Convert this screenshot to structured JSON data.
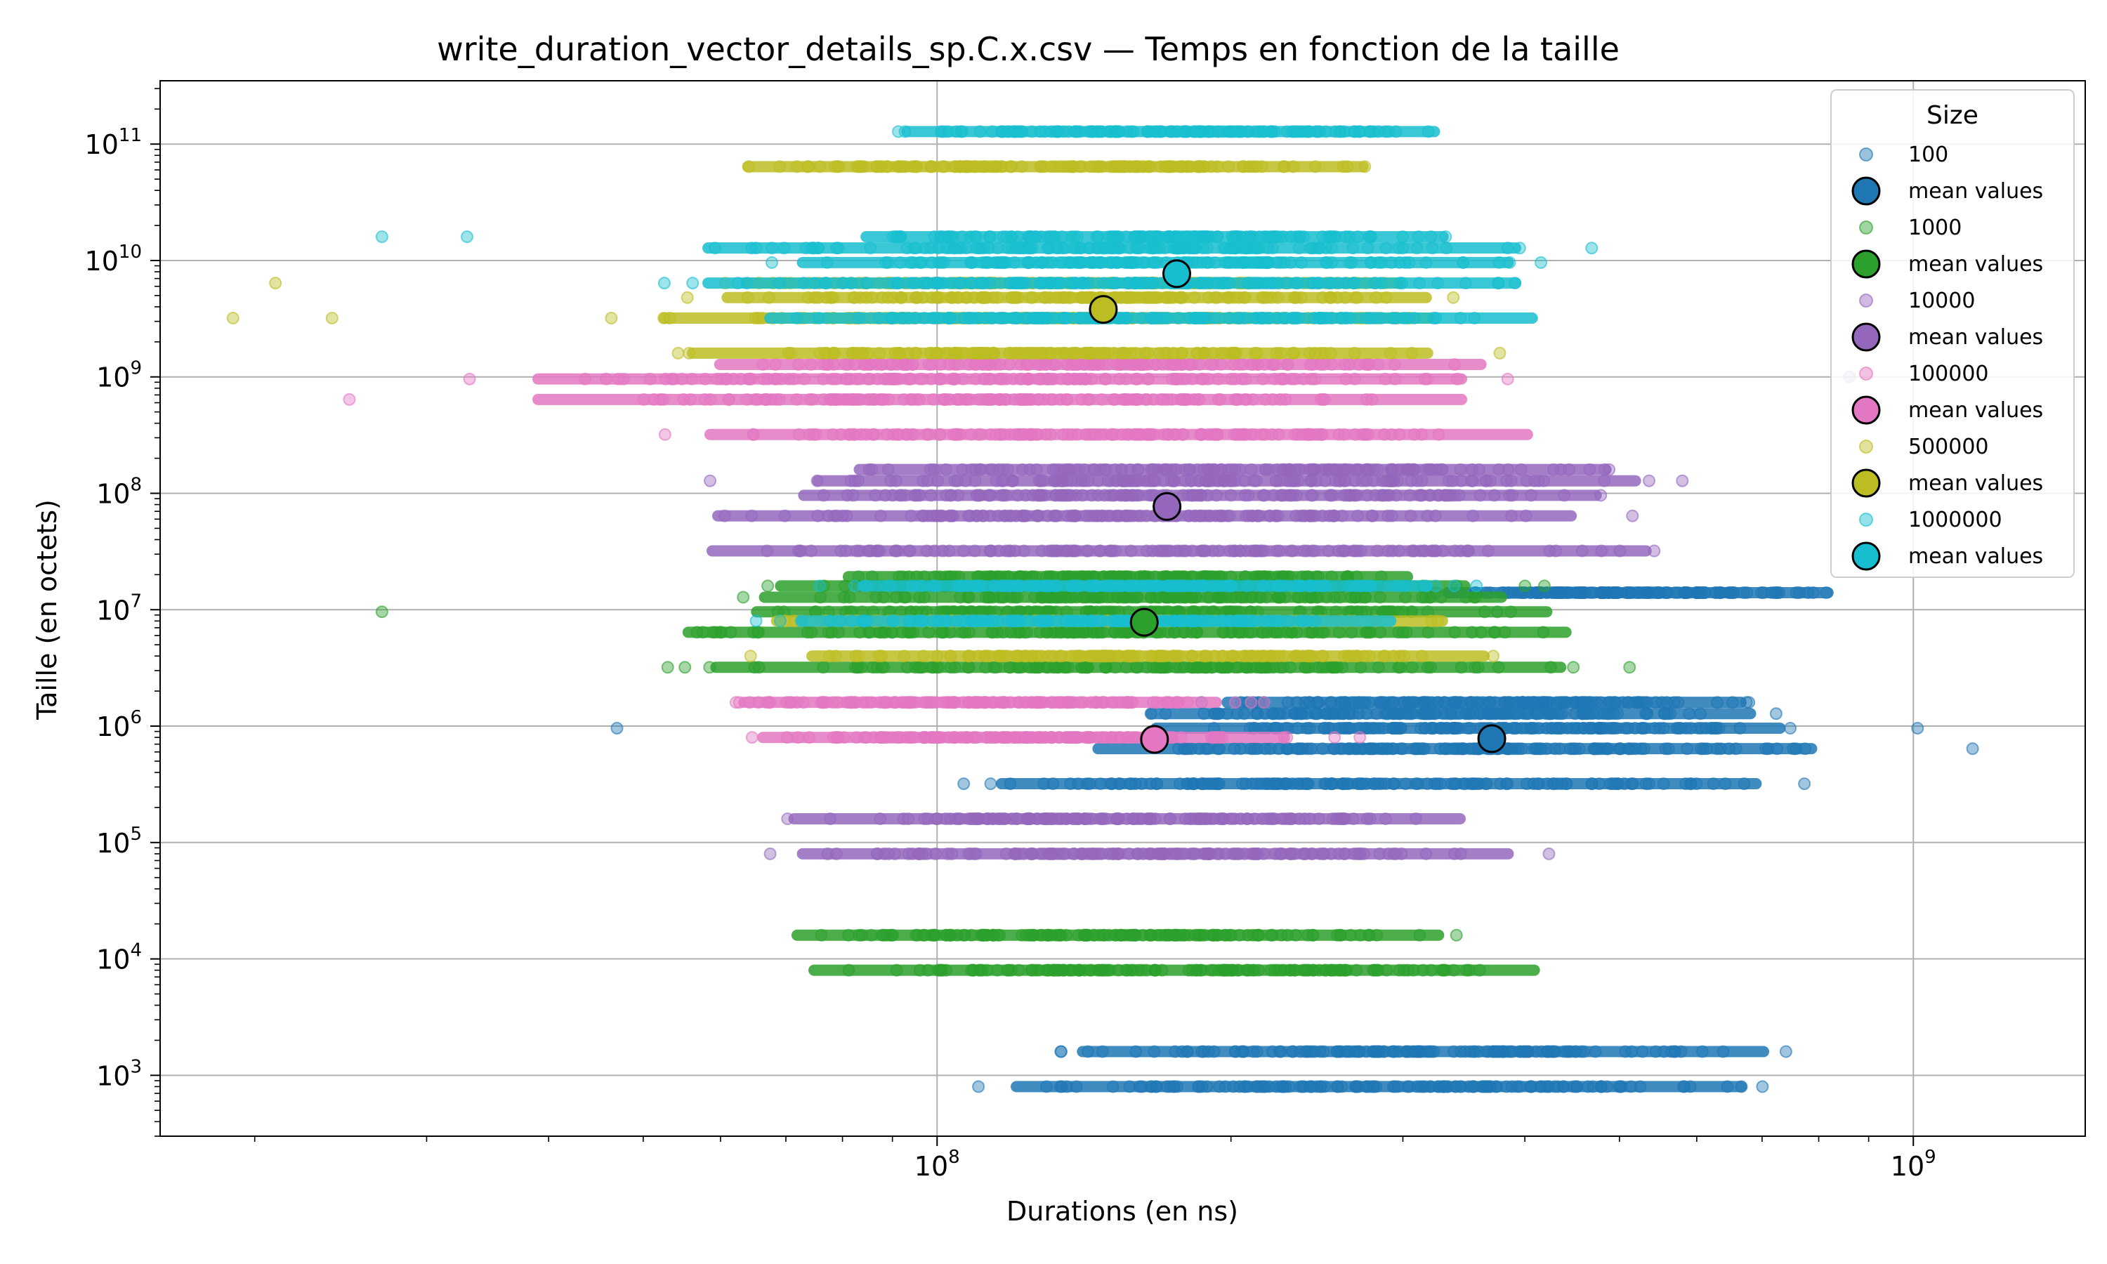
{
  "chart_data": {
    "type": "scatter",
    "title": "write_duration_vector_details_sp.C.x.csv — Temps en fonction de la taille",
    "xlabel": "Durations (en ns)",
    "ylabel": "Taille (en octets)",
    "x_scale": "log",
    "y_scale": "log",
    "xlim": [
      16000000,
      1500000000
    ],
    "ylim": [
      300,
      350000000000
    ],
    "grid": true,
    "legend_title": "Size",
    "legend_position": "top-right",
    "x_ticks": [
      {
        "value": 100000000,
        "base": "10",
        "exp": "8"
      },
      {
        "value": 1000000000,
        "base": "10",
        "exp": "9"
      }
    ],
    "y_ticks": [
      {
        "value": 1000,
        "base": "10",
        "exp": "3"
      },
      {
        "value": 10000,
        "base": "10",
        "exp": "4"
      },
      {
        "value": 100000,
        "base": "10",
        "exp": "5"
      },
      {
        "value": 1000000,
        "base": "10",
        "exp": "6"
      },
      {
        "value": 10000000,
        "base": "10",
        "exp": "7"
      },
      {
        "value": 100000000,
        "base": "10",
        "exp": "8"
      },
      {
        "value": 1000000000,
        "base": "10",
        "exp": "9"
      },
      {
        "value": 10000000000,
        "base": "10",
        "exp": "10"
      },
      {
        "value": 100000000000,
        "base": "10",
        "exp": "11"
      }
    ],
    "series": [
      {
        "name": "100",
        "mean_label": "mean values",
        "color": "#1f77b4",
        "mean": [
          370000000,
          780000
        ],
        "bands": [
          {
            "y": 800,
            "xmin": 82000000,
            "xmax": 980000000
          },
          {
            "y": 1600,
            "xmin": 98000000,
            "xmax": 1010000000
          },
          {
            "y": 320000,
            "xmin": 78000000,
            "xmax": 1030000000
          },
          {
            "y": 640000,
            "xmin": 100000000,
            "xmax": 1150000000
          },
          {
            "y": 960000,
            "xmin": 120000000,
            "xmax": 1020000000
          },
          {
            "y": 1280000,
            "xmin": 120000000,
            "xmax": 940000000
          },
          {
            "y": 1600000,
            "xmin": 150000000,
            "xmax": 880000000
          },
          {
            "y": 14000000,
            "xmin": 270000000,
            "xmax": 1010000000
          }
        ],
        "outliers": [
          [
            47000000,
            960000
          ],
          [
            1150000000,
            640000
          ],
          [
            1010000000,
            960000
          ]
        ]
      },
      {
        "name": "1000",
        "mean_label": "mean values",
        "color": "#2ca02c",
        "mean": [
          163000000,
          7800000
        ],
        "bands": [
          {
            "y": 8000,
            "xmin": 51000000,
            "xmax": 600000000
          },
          {
            "y": 16000,
            "xmin": 51000000,
            "xmax": 460000000
          },
          {
            "y": 3200000,
            "xmin": 38000000,
            "xmax": 680000000
          },
          {
            "y": 6400000,
            "xmin": 35000000,
            "xmax": 700000000
          },
          {
            "y": 9600000,
            "xmin": 43000000,
            "xmax": 640000000
          },
          {
            "y": 12800000,
            "xmin": 45000000,
            "xmax": 560000000
          },
          {
            "y": 16000000,
            "xmin": 48000000,
            "xmax": 500000000
          },
          {
            "y": 19200000,
            "xmin": 60000000,
            "xmax": 410000000
          }
        ],
        "outliers": [
          [
            27000000,
            9600000
          ]
        ]
      },
      {
        "name": "10000",
        "mean_label": "mean values",
        "color": "#9467bd",
        "mean": [
          172000000,
          77000000
        ],
        "bands": [
          {
            "y": 80000,
            "xmin": 50000000,
            "xmax": 560000000
          },
          {
            "y": 160000,
            "xmin": 50000000,
            "xmax": 490000000
          },
          {
            "y": 32000000,
            "xmin": 36000000,
            "xmax": 870000000
          },
          {
            "y": 64000000,
            "xmin": 38000000,
            "xmax": 700000000
          },
          {
            "y": 96000000,
            "xmin": 48000000,
            "xmax": 720000000
          },
          {
            "y": 128000000,
            "xmin": 49000000,
            "xmax": 800000000
          },
          {
            "y": 160000000,
            "xmin": 56000000,
            "xmax": 720000000
          }
        ],
        "outliers": [
          [
            860000000,
            1000000000
          ]
        ]
      },
      {
        "name": "100000",
        "mean_label": "mean values",
        "color": "#e377c2",
        "mean": [
          167000000,
          770000
        ],
        "bands": [
          {
            "y": 800000,
            "xmin": 50000000,
            "xmax": 300000000
          },
          {
            "y": 1600000,
            "xmin": 49000000,
            "xmax": 250000000
          },
          {
            "y": 320000000,
            "xmin": 38000000,
            "xmax": 620000000
          },
          {
            "y": 640000000,
            "xmin": 24000000,
            "xmax": 560000000
          },
          {
            "y": 960000000,
            "xmin": 24000000,
            "xmax": 560000000
          },
          {
            "y": 1280000000,
            "xmin": 40000000,
            "xmax": 540000000
          }
        ],
        "outliers": [
          [
            25000000,
            640000000
          ]
        ]
      },
      {
        "name": "500000",
        "mean_label": "mean values",
        "color": "#bcbd22",
        "mean": [
          148000000,
          3800000000
        ],
        "bands": [
          {
            "y": 4000000,
            "xmin": 52000000,
            "xmax": 520000000
          },
          {
            "y": 8000000,
            "xmin": 48000000,
            "xmax": 470000000
          },
          {
            "y": 1600000000,
            "xmin": 38000000,
            "xmax": 470000000
          },
          {
            "y": 3200000000,
            "xmin": 35000000,
            "xmax": 480000000
          },
          {
            "y": 4800000000,
            "xmin": 42000000,
            "xmax": 460000000
          },
          {
            "y": 6400000000,
            "xmin": 45000000,
            "xmax": 420000000
          },
          {
            "y": 64000000000,
            "xmin": 46000000,
            "xmax": 380000000
          }
        ],
        "outliers": [
          [
            19000000,
            3200000000
          ],
          [
            21000000,
            6400000000
          ],
          [
            24000000,
            3200000000
          ]
        ]
      },
      {
        "name": "1000000",
        "mean_label": "mean values",
        "color": "#17becf",
        "mean": [
          176000000,
          7700000000
        ],
        "bands": [
          {
            "y": 8000000,
            "xmin": 53000000,
            "xmax": 400000000
          },
          {
            "y": 16000000,
            "xmin": 62000000,
            "xmax": 430000000
          },
          {
            "y": 3200000000,
            "xmin": 45000000,
            "xmax": 610000000
          },
          {
            "y": 6400000000,
            "xmin": 38000000,
            "xmax": 600000000
          },
          {
            "y": 9600000000,
            "xmin": 50000000,
            "xmax": 560000000
          },
          {
            "y": 12800000000,
            "xmin": 38000000,
            "xmax": 600000000
          },
          {
            "y": 16000000000,
            "xmin": 62000000,
            "xmax": 450000000
          },
          {
            "y": 128000000000,
            "xmin": 70000000,
            "xmax": 430000000
          }
        ],
        "outliers": [
          [
            27000000,
            16000000000
          ],
          [
            33000000,
            16000000000
          ]
        ]
      }
    ]
  }
}
